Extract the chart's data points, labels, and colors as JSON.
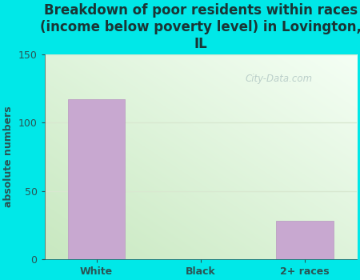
{
  "title": "Breakdown of poor residents within races\n(income below poverty level) in Lovington,\nIL",
  "categories": [
    "White",
    "Black",
    "2+ races"
  ],
  "values": [
    117,
    0,
    28
  ],
  "bar_color": "#c8a8d0",
  "bar_edgecolor": "#b898c0",
  "ylabel": "absolute numbers",
  "ylim": [
    0,
    150
  ],
  "yticks": [
    0,
    50,
    100,
    150
  ],
  "background_color": "#00e8e8",
  "title_color": "#1a3535",
  "axis_color": "#2a5555",
  "watermark_text": "City-Data.com",
  "title_fontsize": 12,
  "ylabel_fontsize": 9,
  "tick_fontsize": 9,
  "grid_color": "#d8e8d0",
  "grid_linewidth": 1.0,
  "plot_bg_left": "#c8e8c0",
  "plot_bg_right": "#f8fff8"
}
